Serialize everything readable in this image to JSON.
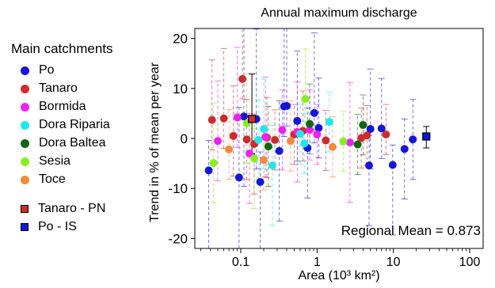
{
  "chart_data": {
    "type": "scatter",
    "title": "Annual maximum discharge",
    "xlabel": "Area (10³ km²)",
    "ylabel": "Trend in % of mean per year",
    "xscale": "log",
    "xlim": [
      0.025,
      150
    ],
    "ylim": [
      -22,
      22
    ],
    "xticks": [
      "0.1",
      "1",
      "10",
      "100"
    ],
    "yticks": [
      "20",
      "10",
      "0",
      "-10",
      "-20"
    ],
    "legend_title": "Main catchments",
    "legend_position": "left",
    "annotation": "Regional Mean = 0.873",
    "grid": false,
    "series": [
      {
        "name": "Po",
        "color": "#1515d6",
        "marker": "circle",
        "points": [
          [
            0.038,
            -6.4
          ],
          [
            0.095,
            -7.8
          ],
          [
            0.11,
            4.4
          ],
          [
            0.16,
            3.9
          ],
          [
            0.18,
            -8.7
          ],
          [
            0.32,
            -2.5
          ],
          [
            0.37,
            6.4
          ],
          [
            0.4,
            6.5
          ],
          [
            0.55,
            3.5
          ],
          [
            0.75,
            -1.9
          ],
          [
            0.92,
            5.1
          ],
          [
            1.05,
            2.1
          ],
          [
            4.8,
            -5.4
          ],
          [
            5.0,
            1.9
          ],
          [
            7.0,
            2.0
          ],
          [
            9.8,
            -5.3
          ],
          [
            14,
            -2.1
          ],
          [
            18,
            -0.2
          ]
        ],
        "err": [
          [
            -18,
            6
          ],
          [
            -22,
            14
          ],
          [
            -14,
            22
          ],
          [
            -10,
            18
          ],
          [
            -22,
            6
          ],
          [
            -14,
            10
          ],
          [
            -6,
            18
          ],
          [
            -4,
            20
          ],
          [
            -8,
            14
          ],
          [
            -10,
            8
          ],
          [
            -6,
            16
          ],
          [
            -6,
            10
          ],
          [
            -12,
            6
          ],
          [
            -8,
            12
          ],
          [
            -6,
            10
          ],
          [
            -14,
            4
          ],
          [
            -10,
            6
          ],
          [
            -8,
            8
          ]
        ]
      },
      {
        "name": "Tanaro",
        "color": "#cc2c2c",
        "marker": "circle",
        "points": [
          [
            0.042,
            3.7
          ],
          [
            0.06,
            4.0
          ],
          [
            0.08,
            0.5
          ],
          [
            0.105,
            11.9
          ],
          [
            0.12,
            -0.2
          ],
          [
            0.15,
            -1.1
          ],
          [
            0.22,
            0.2
          ],
          [
            0.28,
            -0.3
          ],
          [
            0.5,
            0.8
          ],
          [
            0.65,
            1.5
          ],
          [
            1.3,
            -0.4
          ],
          [
            3.8,
            0.1
          ],
          [
            4.5,
            0.6
          ],
          [
            8.0,
            0.8
          ]
        ],
        "err": [
          [
            -6,
            12
          ],
          [
            -6,
            14
          ],
          [
            -8,
            10
          ],
          [
            -4,
            20
          ],
          [
            -8,
            8
          ],
          [
            -10,
            6
          ],
          [
            -8,
            8
          ],
          [
            -6,
            6
          ],
          [
            -6,
            6
          ],
          [
            -6,
            8
          ],
          [
            -6,
            6
          ],
          [
            -6,
            6
          ],
          [
            -6,
            6
          ],
          [
            -4,
            6
          ]
        ]
      },
      {
        "name": "Bormida",
        "color": "#ee22ee",
        "marker": "circle",
        "points": [
          [
            0.05,
            -0.5
          ],
          [
            0.09,
            4.2
          ],
          [
            0.13,
            -3.0
          ],
          [
            0.21,
            0.3
          ],
          [
            0.35,
            1.7
          ],
          [
            0.55,
            1.3
          ],
          [
            0.8,
            1.7
          ],
          [
            1.0,
            0.8
          ],
          [
            2.7,
            -0.8
          ]
        ],
        "err": [
          [
            -8,
            12
          ],
          [
            -6,
            14
          ],
          [
            -10,
            8
          ],
          [
            -8,
            12
          ],
          [
            -8,
            8
          ],
          [
            -10,
            10
          ],
          [
            -6,
            8
          ],
          [
            -6,
            6
          ],
          [
            -12,
            12
          ]
        ]
      },
      {
        "name": "Dora Riparia",
        "color": "#22e6ee",
        "marker": "circle",
        "points": [
          [
            0.17,
            -0.3
          ],
          [
            0.2,
            1.9
          ],
          [
            0.26,
            -5.4
          ],
          [
            0.6,
            0.9
          ],
          [
            0.68,
            -1.0
          ],
          [
            1.45,
            3.3
          ]
        ],
        "err": [
          [
            -8,
            8
          ],
          [
            -8,
            10
          ],
          [
            -12,
            8
          ],
          [
            -6,
            6
          ],
          [
            -6,
            6
          ],
          [
            -6,
            6
          ]
        ]
      },
      {
        "name": "Dora Baltea",
        "color": "#116611",
        "marker": "circle",
        "points": [
          [
            0.23,
            -1.6
          ],
          [
            0.8,
            2.9
          ],
          [
            3.4,
            -1.2
          ],
          [
            4.0,
            2.7
          ]
        ],
        "err": [
          [
            -8,
            8
          ],
          [
            -6,
            8
          ],
          [
            -6,
            6
          ],
          [
            -6,
            6
          ]
        ]
      },
      {
        "name": "Sesia",
        "color": "#88ee22",
        "marker": "circle",
        "points": [
          [
            0.044,
            -4.9
          ],
          [
            0.12,
            3.0
          ],
          [
            0.15,
            -4.0
          ],
          [
            0.7,
            7.9
          ],
          [
            2.2,
            -0.6
          ]
        ],
        "err": [
          [
            -8,
            12
          ],
          [
            -8,
            10
          ],
          [
            -10,
            6
          ],
          [
            -6,
            10
          ],
          [
            -6,
            6
          ]
        ]
      },
      {
        "name": "Toce",
        "color": "#f3893b",
        "marker": "circle",
        "points": [
          [
            0.07,
            -2.2
          ],
          [
            0.2,
            -4.3
          ],
          [
            0.45,
            -0.5
          ],
          [
            1.6,
            -1.7
          ]
        ],
        "err": [
          [
            -6,
            8
          ],
          [
            -6,
            6
          ],
          [
            -6,
            8
          ],
          [
            -6,
            6
          ]
        ]
      },
      {
        "name": "Tanaro - PN",
        "color": "#cc2c2c",
        "marker": "square",
        "points": [
          [
            0.14,
            3.9
          ]
        ],
        "err": [
          [
            -7,
            9
          ]
        ]
      },
      {
        "name": "Po - IS",
        "color": "#1515d6",
        "marker": "square",
        "points": [
          [
            27,
            0.4
          ]
        ],
        "err": [
          [
            -2.3,
            2
          ]
        ]
      }
    ]
  }
}
